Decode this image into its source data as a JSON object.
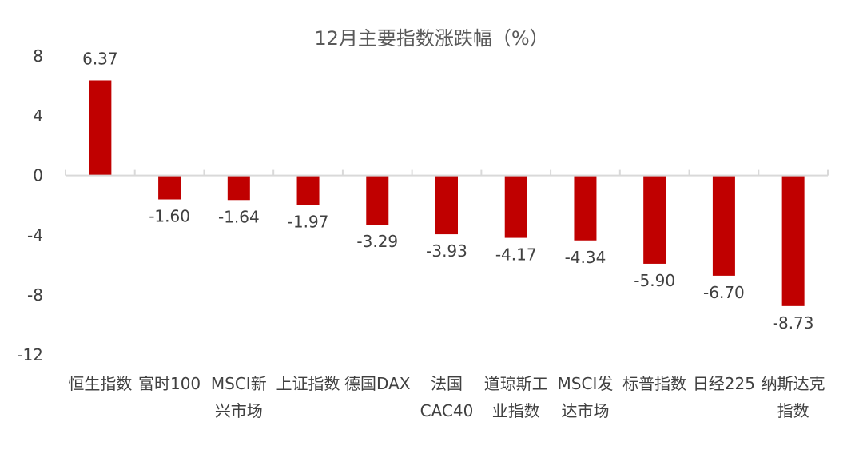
{
  "chart_data": {
    "type": "bar",
    "title": "12月主要指数涨跌幅（%）",
    "categories": [
      "恒生指数",
      "富时100",
      "MSCI新兴市场",
      "上证指数",
      "德国DAX",
      "法国CAC40",
      "道琼斯工业指数",
      "MSCI发达市场",
      "标普指数",
      "日经225",
      "纳斯达克指数"
    ],
    "category_display": [
      [
        "恒生指数"
      ],
      [
        "富时100"
      ],
      [
        "MSCI新",
        "兴市场"
      ],
      [
        "上证指数"
      ],
      [
        "德国DAX"
      ],
      [
        "法国",
        "CAC40"
      ],
      [
        "道琼斯工",
        "业指数"
      ],
      [
        "MSCI发",
        "达市场"
      ],
      [
        "标普指数"
      ],
      [
        "日经225"
      ],
      [
        "纳斯达克",
        "指数"
      ]
    ],
    "values": [
      6.37,
      -1.6,
      -1.64,
      -1.97,
      -3.29,
      -3.93,
      -4.17,
      -4.34,
      -5.9,
      -6.7,
      -8.73
    ],
    "value_labels": [
      "6.37",
      "-1.60",
      "-1.64",
      "-1.97",
      "-3.29",
      "-3.93",
      "-4.17",
      "-4.34",
      "-5.90",
      "-6.70",
      "-8.73"
    ],
    "yticks": [
      8,
      4,
      0,
      -4,
      -8,
      -12
    ],
    "ytick_labels": [
      "8",
      "4",
      "0",
      "-4",
      "-8",
      "-12"
    ],
    "ylim": [
      -12,
      8
    ],
    "xlabel": "",
    "ylabel": "",
    "grid": false,
    "bar_color": "#C00000"
  }
}
